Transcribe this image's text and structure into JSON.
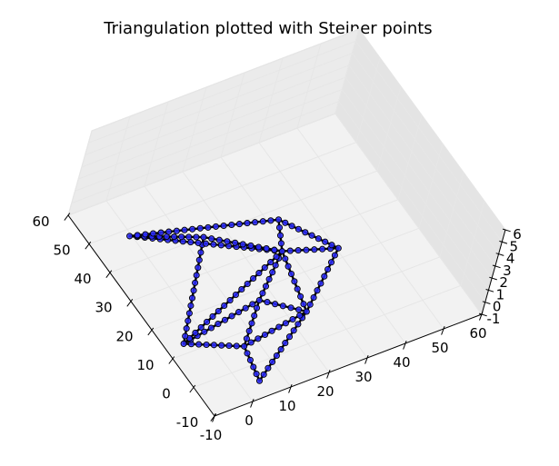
{
  "chart_data": {
    "type": "scatter3d",
    "title": "Triangulation plotted with Steiner points",
    "xlim": [
      -10,
      60
    ],
    "ylim": [
      -10,
      60
    ],
    "zlim": [
      -1,
      6
    ],
    "x_ticks": [
      -10,
      0,
      10,
      20,
      30,
      40,
      50,
      60
    ],
    "y_ticks": [
      -10,
      0,
      10,
      20,
      30,
      40,
      50,
      60
    ],
    "z_ticks": [
      -1,
      0,
      1,
      2,
      3,
      4,
      5,
      6
    ],
    "grid": true,
    "marker_color": "#2a2aff",
    "edge_color": "#000000",
    "vertices": [
      [
        -8,
        2
      ],
      [
        3,
        4
      ],
      [
        10,
        -8
      ],
      [
        14,
        14
      ],
      [
        6,
        22
      ],
      [
        25,
        26
      ],
      [
        20,
        38
      ],
      [
        34,
        30
      ],
      [
        37,
        12
      ],
      [
        45,
        -3
      ]
    ],
    "edges": [
      [
        0,
        1
      ],
      [
        1,
        2
      ],
      [
        2,
        5
      ],
      [
        5,
        9
      ],
      [
        9,
        7
      ],
      [
        7,
        6
      ],
      [
        6,
        4
      ],
      [
        4,
        0
      ],
      [
        1,
        4
      ],
      [
        1,
        3
      ],
      [
        3,
        4
      ],
      [
        2,
        3
      ],
      [
        3,
        5
      ],
      [
        4,
        5
      ],
      [
        5,
        6
      ],
      [
        5,
        7
      ],
      [
        2,
        8
      ],
      [
        8,
        9
      ],
      [
        5,
        8
      ]
    ]
  }
}
